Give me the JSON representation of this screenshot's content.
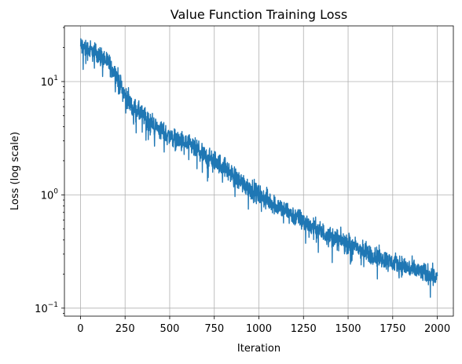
{
  "chart_data": {
    "type": "line",
    "title": "Value Function Training Loss",
    "xlabel": "Iteration",
    "ylabel": "Loss (log scale)",
    "y_scale": "log",
    "grid": true,
    "xlim": [
      -90,
      2090
    ],
    "ylim": [
      0.085,
      31
    ],
    "x_ticks": [
      0,
      250,
      500,
      750,
      1000,
      1250,
      1500,
      1750,
      2000
    ],
    "y_ticks": [
      {
        "value": 0.1,
        "base": "10",
        "exp": "−1"
      },
      {
        "value": 1,
        "base": "10",
        "exp": "0"
      },
      {
        "value": 10,
        "base": "10",
        "exp": "1"
      }
    ],
    "series": [
      {
        "color": "#1f77b4",
        "x": [
          0,
          50,
          100,
          150,
          200,
          250,
          300,
          350,
          400,
          450,
          500,
          550,
          600,
          650,
          700,
          750,
          800,
          850,
          900,
          950,
          1000,
          1050,
          1100,
          1150,
          1200,
          1250,
          1300,
          1350,
          1400,
          1450,
          1500,
          1550,
          1600,
          1650,
          1700,
          1750,
          1800,
          1850,
          1900,
          1950,
          2000
        ],
        "y": [
          20.5,
          19.0,
          17.5,
          15.0,
          11.5,
          7.5,
          5.8,
          5.0,
          4.3,
          3.7,
          3.3,
          3.0,
          2.8,
          2.5,
          2.2,
          2.0,
          1.8,
          1.5,
          1.3,
          1.15,
          1.0,
          0.9,
          0.8,
          0.72,
          0.65,
          0.58,
          0.52,
          0.47,
          0.43,
          0.4,
          0.37,
          0.34,
          0.31,
          0.29,
          0.27,
          0.25,
          0.24,
          0.22,
          0.21,
          0.2,
          0.19
        ],
        "noise_band_log10": 0.13,
        "min_value": 0.11,
        "max_value": 24
      }
    ]
  }
}
